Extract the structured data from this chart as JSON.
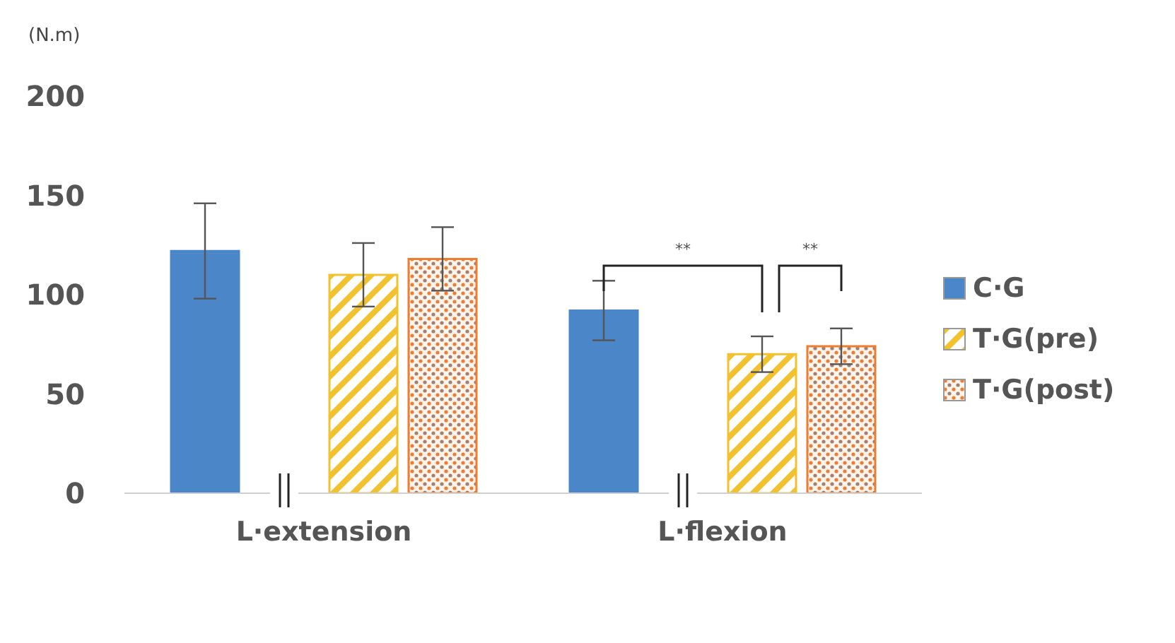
{
  "chart_data": {
    "type": "bar",
    "ylabel": "(N.m)",
    "categories": [
      "L·extension",
      "L·flexion"
    ],
    "series": [
      {
        "name": "C·G",
        "color": "#4a86c8",
        "values": [
          122,
          92
        ],
        "errors": [
          24,
          15
        ]
      },
      {
        "name": "T·G(pre)",
        "color": "#f2c12e",
        "values": [
          110,
          70
        ],
        "errors": [
          16,
          9
        ]
      },
      {
        "name": "T·G(post)",
        "color": "#ed7d31",
        "values": [
          118,
          74
        ],
        "errors": [
          16,
          9
        ]
      }
    ],
    "ylim": [
      0,
      200
    ],
    "yticks": [
      0,
      50,
      100,
      150,
      200
    ],
    "legend": "right",
    "annotations": [
      "**",
      "**"
    ]
  }
}
